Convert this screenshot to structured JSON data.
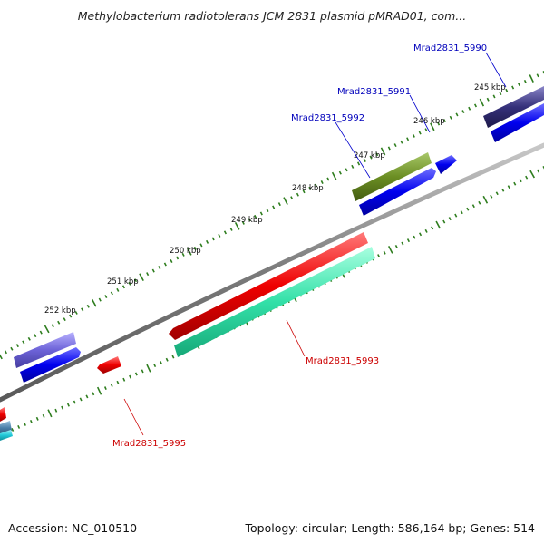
{
  "title": "Methylobacterium radiotolerans JCM 2831 plasmid pMRAD01, com...",
  "footer": {
    "accession": "Accession: NC_010510",
    "summary": "Topology: circular; Length: 586,164 bp; Genes: 514"
  },
  "ruler": {
    "tick_labels": [
      "245 kbp",
      "246 kbp",
      "247 kbp",
      "248 kbp",
      "249 kbp",
      "250 kbp",
      "251 kbp",
      "252 kbp"
    ]
  },
  "genes": {
    "forward_labeled": [
      "Mrad2831_5990",
      "Mrad2831_5991",
      "Mrad2831_5992"
    ],
    "reverse_labeled": [
      "Mrad2831_5993",
      "Mrad2831_5995"
    ]
  },
  "colors": {
    "backbone": "#8a8a8a",
    "tick_major": "#2e7d1e",
    "tick_minor": "#2e7d1e",
    "forward_cds": "#0000ee",
    "reverse_cds": "#ee0000",
    "forward_label": "#0000bb",
    "reverse_label": "#cc0000",
    "cog_dark_blue": "#35307a",
    "cog_olive": "#6b8e23",
    "cog_periwinkle": "#6d63d8",
    "cog_aquamarine": "#33e0a8",
    "cog_steel": "#4a7fa8",
    "cog_cyan": "#20c8d8"
  }
}
